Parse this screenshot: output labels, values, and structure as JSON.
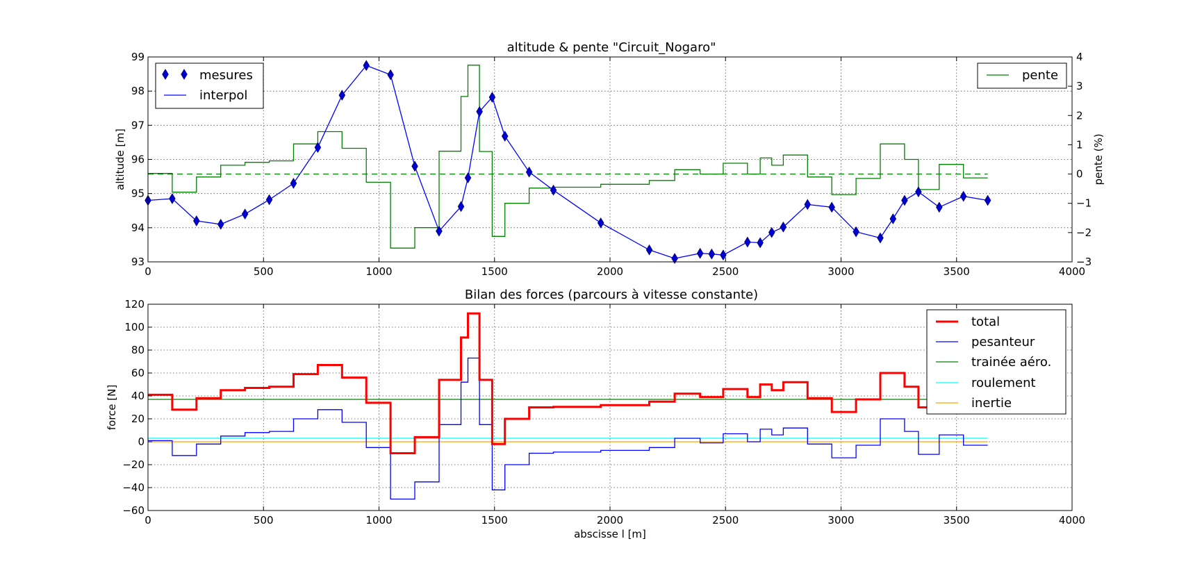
{
  "chart_data": [
    {
      "type": "line",
      "title": "altitude & pente \"Circuit_Nogaro\"",
      "xlabel": "",
      "ylabel": "altitude [m]",
      "y2label": "pente (%)",
      "xlim": [
        0,
        4000
      ],
      "ylim": [
        93,
        99
      ],
      "y2lim": [
        -3,
        4
      ],
      "xticks": [
        0,
        500,
        1000,
        1500,
        2000,
        2500,
        3000,
        3500,
        4000
      ],
      "yticks": [
        93,
        94,
        95,
        96,
        97,
        98,
        99
      ],
      "y2ticks": [
        -3,
        -2,
        -1,
        0,
        1,
        2,
        3,
        4
      ],
      "grid": true,
      "legend_left": {
        "placement": "top-left",
        "entries": [
          "mesures",
          "interpol"
        ]
      },
      "legend_right": {
        "placement": "top-right",
        "entries": [
          "pente"
        ]
      },
      "series": [
        {
          "name": "mesures",
          "axis": "left",
          "style": "markers",
          "color": "#0000cc",
          "x": [
            0,
            105,
            210,
            315,
            420,
            525,
            630,
            735,
            840,
            945,
            1050,
            1155,
            1260,
            1355,
            1385,
            1435,
            1490,
            1545,
            1650,
            1755,
            1960,
            2170,
            2280,
            2390,
            2440,
            2490,
            2595,
            2650,
            2700,
            2750,
            2855,
            2960,
            3065,
            3170,
            3225,
            3275,
            3335,
            3425,
            3530,
            3635
          ],
          "y": [
            94.8,
            94.85,
            94.2,
            94.1,
            94.4,
            94.82,
            95.3,
            96.35,
            97.88,
            98.75,
            98.48,
            95.8,
            93.9,
            94.62,
            95.46,
            97.4,
            97.82,
            96.68,
            95.63,
            95.1,
            94.14,
            93.35,
            93.1,
            93.25,
            93.23,
            93.2,
            93.58,
            93.56,
            93.86,
            94.02,
            94.68,
            94.6,
            93.88,
            93.7,
            94.26,
            94.8,
            95.05,
            94.6,
            94.92,
            94.8
          ]
        },
        {
          "name": "interpol",
          "axis": "left",
          "style": "line",
          "color": "#0000ff",
          "x": [
            0,
            105,
            210,
            315,
            420,
            525,
            630,
            735,
            840,
            945,
            1050,
            1155,
            1260,
            1355,
            1385,
            1435,
            1490,
            1545,
            1650,
            1755,
            1960,
            2170,
            2280,
            2390,
            2440,
            2490,
            2595,
            2650,
            2700,
            2750,
            2855,
            2960,
            3065,
            3170,
            3225,
            3275,
            3335,
            3425,
            3530,
            3635
          ],
          "y": [
            94.8,
            94.85,
            94.2,
            94.1,
            94.4,
            94.82,
            95.3,
            96.35,
            97.88,
            98.75,
            98.48,
            95.8,
            93.9,
            94.62,
            95.46,
            97.4,
            97.82,
            96.68,
            95.63,
            95.1,
            94.14,
            93.35,
            93.1,
            93.25,
            93.23,
            93.2,
            93.58,
            93.56,
            93.86,
            94.02,
            94.68,
            94.6,
            93.88,
            93.7,
            94.26,
            94.8,
            95.05,
            94.6,
            94.92,
            94.8
          ]
        },
        {
          "name": "pente",
          "axis": "right",
          "style": "step",
          "color": "#008000",
          "x": [
            0,
            105,
            210,
            315,
            420,
            525,
            630,
            735,
            840,
            945,
            1050,
            1155,
            1260,
            1355,
            1385,
            1435,
            1490,
            1545,
            1650,
            1755,
            1960,
            2170,
            2280,
            2390,
            2490,
            2595,
            2650,
            2700,
            2750,
            2855,
            2960,
            3065,
            3170,
            3275,
            3335,
            3425,
            3530,
            3635
          ],
          "y": [
            0.02,
            -0.62,
            -0.1,
            0.3,
            0.4,
            0.45,
            1.03,
            1.45,
            0.88,
            -0.28,
            -2.53,
            -1.83,
            0.78,
            2.65,
            3.72,
            0.77,
            -2.13,
            -1.0,
            -0.48,
            -0.45,
            -0.35,
            -0.22,
            0.15,
            0.0,
            0.37,
            0.0,
            0.55,
            0.3,
            0.65,
            -0.1,
            -0.7,
            -0.15,
            1.03,
            0.5,
            -0.53,
            0.33,
            -0.13,
            -0.13
          ]
        },
        {
          "name": "",
          "axis": "right",
          "style": "dashed",
          "color": "#008000",
          "x": [
            0,
            3635
          ],
          "y": [
            0,
            0
          ]
        }
      ]
    },
    {
      "type": "line",
      "title": "Bilan des forces (parcours à vitesse constante)",
      "xlabel": "abscisse l [m]",
      "ylabel": "force [N]",
      "xlim": [
        0,
        4000
      ],
      "ylim": [
        -60,
        120
      ],
      "xticks": [
        0,
        500,
        1000,
        1500,
        2000,
        2500,
        3000,
        3500,
        4000
      ],
      "yticks": [
        -60,
        -40,
        -20,
        0,
        20,
        40,
        60,
        80,
        100,
        120
      ],
      "grid": true,
      "legend": {
        "placement": "top-right",
        "entries": [
          "total",
          "pesanteur",
          "trainée aéro.",
          "roulement",
          "inertie"
        ]
      },
      "series": [
        {
          "name": "total",
          "style": "step",
          "color": "#ff0000",
          "x": [
            0,
            105,
            210,
            315,
            420,
            525,
            630,
            735,
            840,
            945,
            1050,
            1155,
            1260,
            1355,
            1385,
            1435,
            1490,
            1545,
            1650,
            1755,
            1960,
            2170,
            2280,
            2390,
            2490,
            2595,
            2650,
            2700,
            2750,
            2855,
            2960,
            3065,
            3170,
            3275,
            3335,
            3425,
            3530,
            3635
          ],
          "y": [
            41,
            28,
            38,
            45,
            47,
            48,
            59,
            67,
            56,
            34,
            -10,
            4,
            54,
            91,
            112,
            54,
            -2,
            20,
            30,
            30.5,
            32,
            35,
            42,
            39,
            46,
            39,
            50,
            45,
            52,
            38,
            26,
            37,
            60,
            48,
            30,
            44,
            37,
            37
          ]
        },
        {
          "name": "pesanteur",
          "style": "step",
          "color": "#0000ff",
          "x": [
            0,
            105,
            210,
            315,
            420,
            525,
            630,
            735,
            840,
            945,
            1050,
            1155,
            1260,
            1355,
            1385,
            1435,
            1490,
            1545,
            1650,
            1755,
            1960,
            2170,
            2280,
            2390,
            2490,
            2595,
            2650,
            2700,
            2750,
            2855,
            2960,
            3065,
            3170,
            3275,
            3335,
            3425,
            3530,
            3635
          ],
          "y": [
            1,
            -12,
            -2,
            5,
            8,
            9,
            20,
            28,
            17,
            -5,
            -50,
            -35,
            15,
            52,
            73,
            15,
            -42,
            -20,
            -10,
            -9,
            -7.5,
            -5,
            3,
            -1,
            7,
            0,
            11,
            6,
            12,
            -2,
            -14,
            -3,
            20,
            9,
            -11,
            6,
            -3,
            -3
          ]
        },
        {
          "name": "trainée aéro.",
          "style": "line",
          "color": "#008000",
          "x": [
            0,
            3635
          ],
          "y": [
            37,
            37
          ]
        },
        {
          "name": "roulement",
          "style": "line",
          "color": "#00ffff",
          "x": [
            0,
            3635
          ],
          "y": [
            3,
            3
          ]
        },
        {
          "name": "inertie",
          "style": "line",
          "color": "#ffa500",
          "x": [
            0,
            3635
          ],
          "y": [
            0,
            0
          ]
        }
      ]
    }
  ]
}
